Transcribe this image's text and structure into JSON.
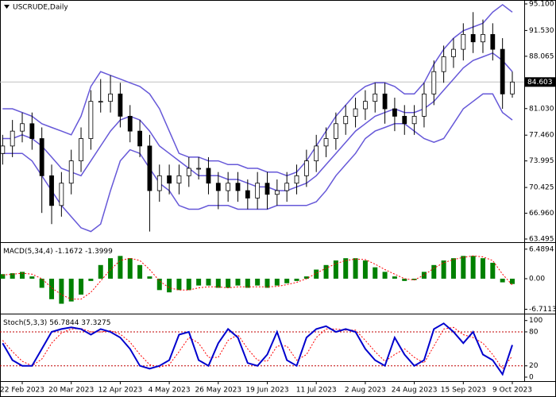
{
  "chart_data": [
    {
      "type": "candlestick",
      "title": "USCRUDE,Daily",
      "categories": [
        null,
        null,
        "22 Feb 2023",
        null,
        null,
        null,
        null,
        "20 Mar 2023",
        null,
        null,
        null,
        null,
        "12 Apr 2023",
        null,
        null,
        null,
        null,
        "4 May 2023",
        null,
        null,
        null,
        null,
        "26 May 2023",
        null,
        null,
        null,
        null,
        "19 Jun 2023",
        null,
        null,
        null,
        null,
        "11 Jul 2023",
        null,
        null,
        null,
        null,
        "2 Aug 2023",
        null,
        null,
        null,
        null,
        "24 Aug 2023",
        null,
        null,
        null,
        null,
        "15 Sep 2023",
        null,
        null,
        null,
        null,
        "9 Oct 2023"
      ],
      "open": [
        75,
        76,
        78,
        79,
        77,
        72,
        68,
        71,
        74,
        77,
        82,
        82,
        83,
        80,
        78,
        76,
        70,
        72,
        71,
        72,
        73,
        73,
        71,
        70,
        71,
        70,
        69,
        71,
        69.5,
        70,
        71,
        72,
        74,
        76,
        77,
        79,
        80,
        81,
        82,
        83,
        81,
        80,
        79,
        80,
        83,
        86,
        88,
        89,
        91,
        90,
        91,
        89,
        83
      ],
      "high": [
        77.5,
        79.5,
        80.5,
        80.5,
        78.5,
        73.5,
        72.5,
        75.5,
        78.5,
        83.5,
        85,
        85.5,
        84.5,
        81.5,
        79.5,
        77.5,
        73.5,
        73.5,
        73.5,
        74.5,
        74.5,
        74.5,
        72.5,
        72.5,
        72.5,
        71.5,
        72.5,
        72.5,
        71.5,
        72.5,
        73.5,
        75.5,
        77.5,
        78.5,
        80.5,
        81.5,
        82.5,
        83.5,
        84.5,
        84.5,
        82.5,
        81.5,
        81.5,
        84.5,
        87.5,
        89.5,
        90.5,
        92.5,
        94,
        93,
        92.5,
        90.5,
        86
      ],
      "low": [
        73.5,
        74.5,
        76.5,
        75.5,
        67,
        65.5,
        66.5,
        69.5,
        72.5,
        75.5,
        80.5,
        80.5,
        78.5,
        76.5,
        74.5,
        64.5,
        68.5,
        69.5,
        69.5,
        70.5,
        71.5,
        69.5,
        67.5,
        68.5,
        68.5,
        67.5,
        67.5,
        67.5,
        68,
        68.5,
        69.5,
        70.5,
        72.5,
        74.5,
        75.5,
        77.5,
        78.5,
        79.5,
        80.5,
        79,
        78,
        77.5,
        77.5,
        78.5,
        81.5,
        84.5,
        86.5,
        87.5,
        88.5,
        88.5,
        87.5,
        81,
        82.5
      ],
      "close": [
        76,
        78,
        79,
        77,
        72,
        68,
        71,
        74,
        77,
        82,
        82,
        83,
        80,
        78,
        76,
        70,
        72,
        71,
        72,
        73,
        73,
        71,
        70,
        71,
        70,
        69,
        71,
        69.5,
        70,
        71,
        72,
        74,
        76,
        77,
        79,
        80,
        81,
        82,
        83,
        81,
        80,
        79,
        80,
        83,
        86,
        88,
        89,
        91,
        90,
        91,
        89,
        83,
        84.6
      ],
      "series": [
        {
          "color": "#6658d8",
          "values": [
            81,
            81,
            80.5,
            80,
            79,
            78.5,
            78,
            77.5,
            80,
            84,
            86,
            85.5,
            85,
            84.5,
            84,
            83,
            81,
            78,
            75,
            74.5,
            74.5,
            74,
            74,
            73.5,
            73.5,
            73,
            73,
            72.5,
            72.5,
            72,
            72.5,
            74,
            76,
            78,
            80,
            81.5,
            83,
            84,
            84.5,
            84.5,
            84,
            83,
            83,
            84.5,
            87,
            89,
            90.5,
            91.5,
            92,
            92.5,
            94,
            95,
            94
          ]
        },
        {
          "color": "#6658d8",
          "values": [
            77,
            77,
            77.5,
            77,
            76,
            74.5,
            73,
            72.5,
            72,
            74,
            76,
            78,
            79.5,
            80,
            79.5,
            78,
            76,
            75,
            74,
            73,
            72,
            72,
            72,
            71.5,
            71.5,
            71,
            70.5,
            70.5,
            70,
            70,
            70.5,
            71,
            72,
            73.5,
            75,
            76.5,
            78,
            79,
            80,
            80.5,
            81,
            80.5,
            80.5,
            81,
            82,
            83.5,
            85,
            86.5,
            87.5,
            88,
            88.5,
            87.5,
            86
          ]
        },
        {
          "color": "#6658d8",
          "values": [
            75,
            75,
            75,
            74,
            72,
            70,
            68,
            66.5,
            65,
            64.5,
            65.5,
            70,
            74,
            75.5,
            75,
            73,
            71,
            70,
            68,
            67.5,
            67.5,
            68,
            68,
            68,
            67.5,
            67.5,
            67.5,
            67.5,
            68,
            68,
            68,
            68,
            68.5,
            70,
            72,
            73.5,
            75,
            77,
            78,
            78.5,
            79,
            79,
            78,
            77,
            76.5,
            77,
            79,
            81,
            82,
            83,
            83,
            80.5,
            79.5
          ]
        }
      ],
      "last_price": 84.603,
      "ylim": [
        63.07,
        95.63
      ],
      "yticks": [
        {
          "value": 95.1,
          "label": "95.100"
        },
        {
          "value": 91.53,
          "label": "91.530"
        },
        88.065,
        {
          "value": 81.03,
          "label": "81.030"
        },
        {
          "value": 77.46,
          "label": "77.460"
        },
        73.995,
        70.425,
        {
          "value": 66.96,
          "label": "66.960"
        },
        63.495
      ]
    },
    {
      "type": "macd",
      "title": "MACD(5,34,4)",
      "series": [
        {
          "color": "#008000",
          "values": [
            1,
            1.2,
            1.5,
            0.5,
            -2,
            -4.5,
            -5.5,
            -5,
            -3.5,
            -0.5,
            3,
            4.5,
            5,
            4.5,
            3,
            0.5,
            -2.5,
            -3,
            -2.5,
            -2.5,
            -1.5,
            -1.5,
            -2,
            -2,
            -1.5,
            -2,
            -1.5,
            -2,
            -1.5,
            -1,
            -0.5,
            0.5,
            2,
            3,
            4,
            4.5,
            4.5,
            4,
            2.5,
            1.5,
            0.5,
            -0.5,
            -0.3,
            1.5,
            3,
            4,
            4.5,
            5,
            5,
            4.5,
            3.5,
            -0.8,
            -1.1672
          ]
        },
        {
          "color": "#ff0000",
          "values": [
            0.8,
            1,
            1.2,
            1,
            0,
            -2,
            -3.5,
            -4.5,
            -4.5,
            -3,
            -0.5,
            2,
            4,
            4.5,
            4,
            2,
            -0.5,
            -2,
            -2.5,
            -2.5,
            -2,
            -1.8,
            -1.8,
            -2,
            -1.8,
            -1.8,
            -1.8,
            -1.8,
            -1.7,
            -1.3,
            -0.8,
            0,
            1.2,
            2.3,
            3.3,
            4,
            4.3,
            4.2,
            3.2,
            2,
            1,
            0,
            -0.3,
            0.8,
            2.3,
            3.5,
            4.2,
            4.7,
            5,
            4.8,
            4,
            1,
            -1.3999
          ]
        }
      ],
      "ylim": [
        -7.5,
        7.5
      ],
      "yticks": [
        6.4894,
        {
          "value": 0,
          "label": "0.00"
        },
        -6.7113
      ]
    },
    {
      "type": "stochastic",
      "title": "Stoch(5,3,3)",
      "series": [
        {
          "color": "#0000cd",
          "values": [
            60,
            30,
            20,
            20,
            50,
            80,
            85,
            88,
            85,
            75,
            85,
            80,
            70,
            50,
            20,
            15,
            20,
            30,
            75,
            80,
            30,
            20,
            60,
            85,
            70,
            25,
            20,
            40,
            80,
            30,
            20,
            70,
            85,
            90,
            80,
            85,
            80,
            50,
            30,
            20,
            70,
            40,
            20,
            30,
            85,
            95,
            80,
            60,
            80,
            40,
            30,
            5,
            56.7844
          ]
        },
        {
          "color": "#ff0000",
          "values": [
            65,
            45,
            28,
            20,
            32,
            60,
            78,
            85,
            86,
            80,
            80,
            82,
            76,
            62,
            40,
            22,
            18,
            22,
            45,
            70,
            60,
            35,
            35,
            65,
            75,
            50,
            30,
            28,
            55,
            55,
            30,
            40,
            70,
            85,
            85,
            83,
            83,
            65,
            45,
            28,
            40,
            50,
            35,
            25,
            55,
            85,
            88,
            75,
            70,
            60,
            40,
            15,
            37.3275
          ]
        }
      ],
      "levels": [
        80,
        20
      ],
      "ylim": [
        -7,
        108
      ],
      "yticks": [
        100,
        80,
        20,
        0
      ]
    }
  ]
}
